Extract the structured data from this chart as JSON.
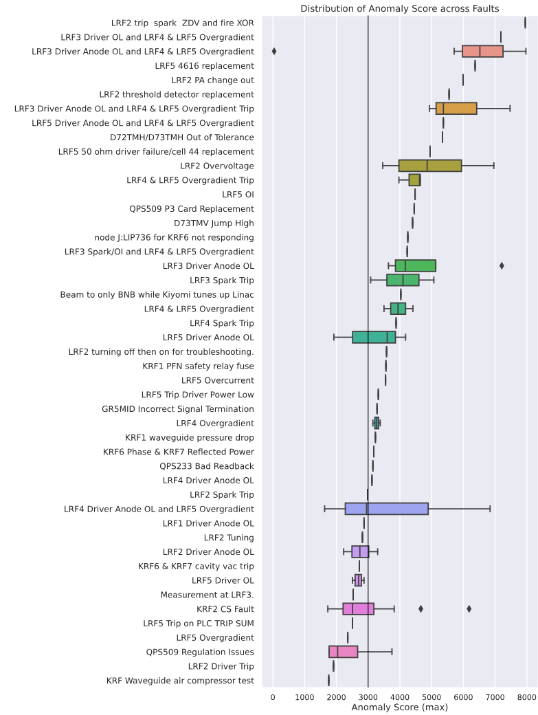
{
  "chart_data": {
    "type": "box",
    "orientation": "horizontal",
    "title": "Distribution of Anomaly Score across Faults",
    "xlabel": "Anomaly Score (max)",
    "categories": [
      "LRF2 trip  spark  ZDV and fire XOR",
      "LRF3 Driver OL and LRF4 & LRF5 Overgradient",
      "LRF3 Driver Anode OL and LRF4 & LRF5 Overgradient",
      "LRF5 4616 replacement",
      "LRF2 PA change out",
      "LRF2 threshold detector replacement",
      "LRF3 Driver Anode OL and LRF4 & LRF5 Overgradient Trip",
      "LRF5 Driver Anode OL and LRF4 & LRF5 Overgradient",
      "D72TMH/D73TMH Out of Tolerance",
      "LRF5 50 ohm driver failure/cell 44 replacement",
      "LRF2 Overvoltage",
      "LRF4 & LRF5 Overgradient Trip",
      "LRF5 OI",
      "QPS509 P3 Card Replacement",
      "D73TMV Jump High",
      "node J:LIP736 for KRF6 not responding",
      "LRF3 Spark/OI and LRF4 & LRF5 Overgradient",
      "LRF3 Driver Anode OL",
      "LRF3 Spark Trip",
      "Beam to only BNB while Kiyomi tunes up Linac",
      "LRF4 & LRF5 Overgradient",
      "LRF4 Spark Trip",
      "LRF5 Driver Anode OL",
      "LRF2 turning off then on for troubleshooting.",
      "KRF1 PFN safety relay fuse",
      "LRF5 Overcurrent",
      "LRF5 Trip Driver Power Low",
      "GR5MID Incorrect Signal Termination",
      "LRF4 Overgradient",
      "KRF1 waveguide pressure drop",
      "KRF6 Phase & KRF7 Reflected Power",
      "QPS233 Bad Readback",
      "LRF4 Driver Anode OL",
      "LRF2 Spark Trip",
      "LRF4 Driver Anode OL and LRF5 Overgradient",
      "LRF1 Driver Anode OL",
      "LRF2 Tuning",
      "LRF2 Driver Anode OL",
      "KRF6 & KRF7 cavity vac trip",
      "LRF5 Driver OL",
      "Measurement at LRF3.",
      "KRF2 CS Fault",
      "LRF5 Trip on PLC TRIP SUM",
      "LRF5 Overgradient",
      "QPS509 Regulation Issues",
      "LRF2 Driver Trip",
      "KRF Waveguide air compressor test"
    ],
    "boxes": [
      {
        "low": 7950,
        "q1": 7950,
        "median": 7950,
        "q3": 7950,
        "high": 7950
      },
      {
        "low": 7180,
        "q1": 7180,
        "median": 7180,
        "q3": 7180,
        "high": 7180
      },
      {
        "low": 5710,
        "q1": 5970,
        "median": 6520,
        "q3": 7250,
        "high": 7970,
        "outliers": [
          40
        ]
      },
      {
        "low": 6370,
        "q1": 6370,
        "median": 6370,
        "q3": 6370,
        "high": 6370
      },
      {
        "low": 5990,
        "q1": 5990,
        "median": 5990,
        "q3": 5990,
        "high": 5990
      },
      {
        "low": 5550,
        "q1": 5550,
        "median": 5550,
        "q3": 5550,
        "high": 5550
      },
      {
        "low": 4930,
        "q1": 5140,
        "median": 5370,
        "q3": 6420,
        "high": 7470
      },
      {
        "low": 5370,
        "q1": 5370,
        "median": 5370,
        "q3": 5370,
        "high": 5370
      },
      {
        "low": 5340,
        "q1": 5340,
        "median": 5340,
        "q3": 5340,
        "high": 5340
      },
      {
        "low": 4950,
        "q1": 4950,
        "median": 4950,
        "q3": 4950,
        "high": 4950
      },
      {
        "low": 3460,
        "q1": 3970,
        "median": 4860,
        "q3": 5940,
        "high": 6960
      },
      {
        "low": 3970,
        "q1": 4290,
        "median": 4620,
        "q3": 4640,
        "high": 4640
      },
      {
        "low": 4480,
        "q1": 4480,
        "median": 4480,
        "q3": 4480,
        "high": 4480
      },
      {
        "low": 4450,
        "q1": 4450,
        "median": 4450,
        "q3": 4450,
        "high": 4450
      },
      {
        "low": 4400,
        "q1": 4400,
        "median": 4400,
        "q3": 4400,
        "high": 4400
      },
      {
        "low": 4250,
        "q1": 4250,
        "median": 4250,
        "q3": 4250,
        "high": 4250
      },
      {
        "low": 4230,
        "q1": 4230,
        "median": 4230,
        "q3": 4230,
        "high": 4230
      },
      {
        "low": 3640,
        "q1": 3860,
        "median": 4170,
        "q3": 5130,
        "high": 5130,
        "outliers": [
          7210
        ]
      },
      {
        "low": 3080,
        "q1": 3590,
        "median": 4100,
        "q3": 4600,
        "high": 5070
      },
      {
        "low": 4030,
        "q1": 4030,
        "median": 4030,
        "q3": 4030,
        "high": 4030
      },
      {
        "low": 3500,
        "q1": 3710,
        "median": 3940,
        "q3": 4180,
        "high": 4410
      },
      {
        "low": 3880,
        "q1": 3880,
        "median": 3880,
        "q3": 3880,
        "high": 3880
      },
      {
        "low": 1920,
        "q1": 2510,
        "median": 3600,
        "q3": 3860,
        "high": 4180
      },
      {
        "low": 3580,
        "q1": 3580,
        "median": 3580,
        "q3": 3580,
        "high": 3580
      },
      {
        "low": 3560,
        "q1": 3560,
        "median": 3560,
        "q3": 3560,
        "high": 3560
      },
      {
        "low": 3550,
        "q1": 3550,
        "median": 3550,
        "q3": 3550,
        "high": 3550
      },
      {
        "low": 3320,
        "q1": 3320,
        "median": 3320,
        "q3": 3320,
        "high": 3320
      },
      {
        "low": 3280,
        "q1": 3280,
        "median": 3280,
        "q3": 3280,
        "high": 3280
      },
      {
        "low": 3150,
        "q1": 3210,
        "median": 3270,
        "q3": 3330,
        "high": 3380
      },
      {
        "low": 3230,
        "q1": 3230,
        "median": 3230,
        "q3": 3230,
        "high": 3230
      },
      {
        "low": 3180,
        "q1": 3180,
        "median": 3180,
        "q3": 3180,
        "high": 3180
      },
      {
        "low": 3150,
        "q1": 3150,
        "median": 3150,
        "q3": 3150,
        "high": 3150
      },
      {
        "low": 3120,
        "q1": 3120,
        "median": 3120,
        "q3": 3120,
        "high": 3120
      },
      {
        "low": 2980,
        "q1": 2980,
        "median": 2980,
        "q3": 2980,
        "high": 2980
      },
      {
        "low": 1630,
        "q1": 2280,
        "median": 2950,
        "q3": 4890,
        "high": 6840
      },
      {
        "low": 2870,
        "q1": 2870,
        "median": 2870,
        "q3": 2870,
        "high": 2870
      },
      {
        "low": 2820,
        "q1": 2820,
        "median": 2820,
        "q3": 2820,
        "high": 2820
      },
      {
        "low": 2230,
        "q1": 2490,
        "median": 2740,
        "q3": 3020,
        "high": 3300
      },
      {
        "low": 2720,
        "q1": 2720,
        "median": 2720,
        "q3": 2720,
        "high": 2720
      },
      {
        "low": 2510,
        "q1": 2590,
        "median": 2700,
        "q3": 2790,
        "high": 2870
      },
      {
        "low": 2530,
        "q1": 2530,
        "median": 2530,
        "q3": 2530,
        "high": 2530
      },
      {
        "low": 1730,
        "q1": 2210,
        "median": 2510,
        "q3": 3180,
        "high": 3820,
        "outliers": [
          4660,
          6180
        ]
      },
      {
        "low": 2510,
        "q1": 2510,
        "median": 2510,
        "q3": 2510,
        "high": 2510
      },
      {
        "low": 2360,
        "q1": 2360,
        "median": 2360,
        "q3": 2360,
        "high": 2360
      },
      {
        "low": 1770,
        "q1": 1770,
        "median": 2040,
        "q3": 2670,
        "high": 3750
      },
      {
        "low": 1910,
        "q1": 1910,
        "median": 1910,
        "q3": 1910,
        "high": 1910
      },
      {
        "low": 1760,
        "q1": 1760,
        "median": 1760,
        "q3": 1760,
        "high": 1760
      }
    ],
    "colors": [
      null,
      null,
      "#e8948a",
      null,
      null,
      null,
      "#d69e48",
      null,
      null,
      null,
      "#a8a03e",
      "#a2a33c",
      null,
      null,
      null,
      null,
      null,
      "#4db65a",
      "#4bb56d",
      null,
      "#45b384",
      null,
      "#3fb196",
      null,
      null,
      null,
      null,
      null,
      "#3ea5ac",
      null,
      null,
      null,
      null,
      null,
      "#9ea4f0",
      null,
      null,
      "#c59cf0",
      null,
      "#d491ea",
      null,
      "#e27fdc",
      null,
      null,
      "#e886c2",
      null,
      null
    ],
    "xlim": [
      -350,
      8350
    ],
    "xticks": [
      0,
      1000,
      2000,
      3000,
      4000,
      5000,
      6000,
      7000,
      8000
    ],
    "ref_lines": [
      {
        "axis": "x",
        "value": 3000,
        "color": "#000000"
      }
    ],
    "grid": "x"
  }
}
